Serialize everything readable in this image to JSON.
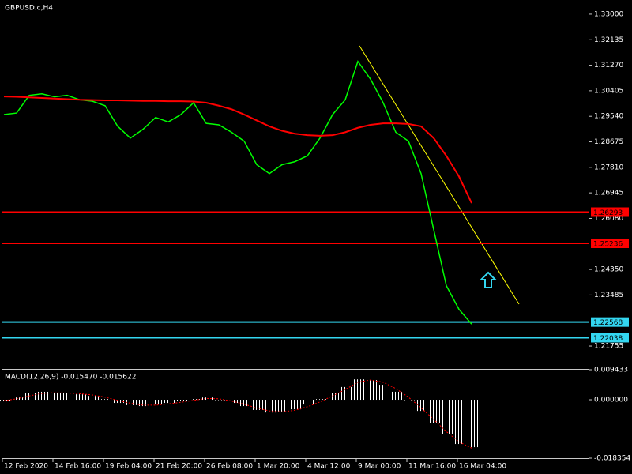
{
  "chart_data": [
    {
      "type": "line",
      "title": "GBPUSD.c,H4",
      "categories": [
        "12 Feb 2020",
        null,
        null,
        null,
        "14 Feb 16:00",
        null,
        null,
        null,
        "19 Feb 04:00",
        null,
        null,
        null,
        "21 Feb 20:00",
        null,
        null,
        null,
        "26 Feb 08:00",
        null,
        null,
        null,
        "1 Mar 20:00",
        null,
        null,
        null,
        "4 Mar 12:00",
        null,
        null,
        null,
        "9 Mar 00:00",
        null,
        null,
        null,
        "11 Mar 16:00",
        null,
        null,
        null,
        "16 Mar 04:00",
        null
      ],
      "series": [
        {
          "color": "#00ff00",
          "values": [
            1.296,
            1.2965,
            1.3025,
            1.303,
            1.302,
            1.3025,
            1.301,
            1.3005,
            1.299,
            1.292,
            1.288,
            1.291,
            1.295,
            1.2935,
            1.296,
            1.3,
            1.293,
            1.2925,
            1.29,
            1.287,
            1.279,
            1.276,
            1.279,
            1.28,
            1.282,
            1.288,
            1.296,
            1.301,
            1.314,
            1.308,
            1.3,
            1.29,
            1.287,
            1.276,
            1.257,
            1.238,
            1.23,
            1.225
          ]
        },
        {
          "color": "#ff0000",
          "values": [
            1.3021,
            1.302,
            1.3018,
            1.3016,
            1.3014,
            1.3012,
            1.301,
            1.3009,
            1.3008,
            1.3008,
            1.3007,
            1.3006,
            1.3006,
            1.3005,
            1.3005,
            1.3004,
            1.3,
            1.299,
            1.2978,
            1.296,
            1.294,
            1.292,
            1.2905,
            1.2895,
            1.289,
            1.2888,
            1.289,
            1.29,
            1.2915,
            1.2925,
            1.293,
            1.293,
            1.2928,
            1.292,
            1.288,
            1.282,
            1.275,
            1.266
          ]
        }
      ],
      "ylim": [
        1.2106,
        1.334
      ],
      "yticks": [
        {
          "value": 1.33,
          "label": "1.33000"
        },
        1.32135,
        {
          "value": 1.3127,
          "label": "1.31270"
        },
        1.30405,
        {
          "value": 1.2954,
          "label": "1.29540"
        },
        1.28675,
        {
          "value": 1.2781,
          "label": "1.27810"
        },
        1.26945,
        {
          "value": 1.2608,
          "label": "1.26080"
        },
        {
          "value": 1.2435,
          "label": "1.24350"
        },
        1.23485,
        1.21755
      ],
      "levels": [
        {
          "value": 1.26293,
          "color": "#ff0000"
        },
        {
          "value": 1.25236,
          "color": "#ff0000"
        },
        {
          "value": 1.22568,
          "color": "#33d6f0"
        },
        {
          "value": 1.22038,
          "color": "#33d6f0"
        }
      ]
    },
    {
      "type": "macd",
      "title": "MACD(12,26,9) -0.015470 -0.015622",
      "series": [
        {
          "type": "bar",
          "color": "#ffffff",
          "values": [
            -0.0005,
            0.0007,
            0.002,
            0.0025,
            0.0022,
            0.002,
            0.0017,
            0.0012,
            0.0002,
            -0.001,
            -0.0017,
            -0.002,
            -0.0015,
            -0.001,
            -0.0005,
            0.0002,
            0.0007,
            0.0,
            -0.001,
            -0.002,
            -0.0032,
            -0.004,
            -0.0037,
            -0.003,
            -0.0015,
            0.0002,
            0.0022,
            0.004,
            0.0064,
            0.0062,
            0.0047,
            0.0025,
            0.0,
            -0.0035,
            -0.0072,
            -0.0109,
            -0.0139,
            -0.0149
          ]
        },
        {
          "type": "line",
          "color": "#ff0000",
          "values": [
            -0.0003,
            0.0003,
            0.0012,
            0.002,
            0.0022,
            0.0021,
            0.0019,
            0.0015,
            0.0008,
            -0.0002,
            -0.0011,
            -0.0017,
            -0.0017,
            -0.0013,
            -0.0008,
            -0.0002,
            0.0004,
            0.0003,
            -0.0004,
            -0.0014,
            -0.0026,
            -0.0035,
            -0.0038,
            -0.0033,
            -0.0022,
            -0.0007,
            0.0012,
            0.0032,
            0.0055,
            0.0062,
            0.0055,
            0.0035,
            0.0008,
            -0.0025,
            -0.0062,
            -0.01,
            -0.0132,
            -0.0152
          ]
        }
      ],
      "ylim": [
        -0.018354,
        0.009433
      ],
      "yticks": [
        0.009433,
        {
          "value": 0,
          "label": "0.000000"
        },
        -0.018354
      ]
    }
  ]
}
